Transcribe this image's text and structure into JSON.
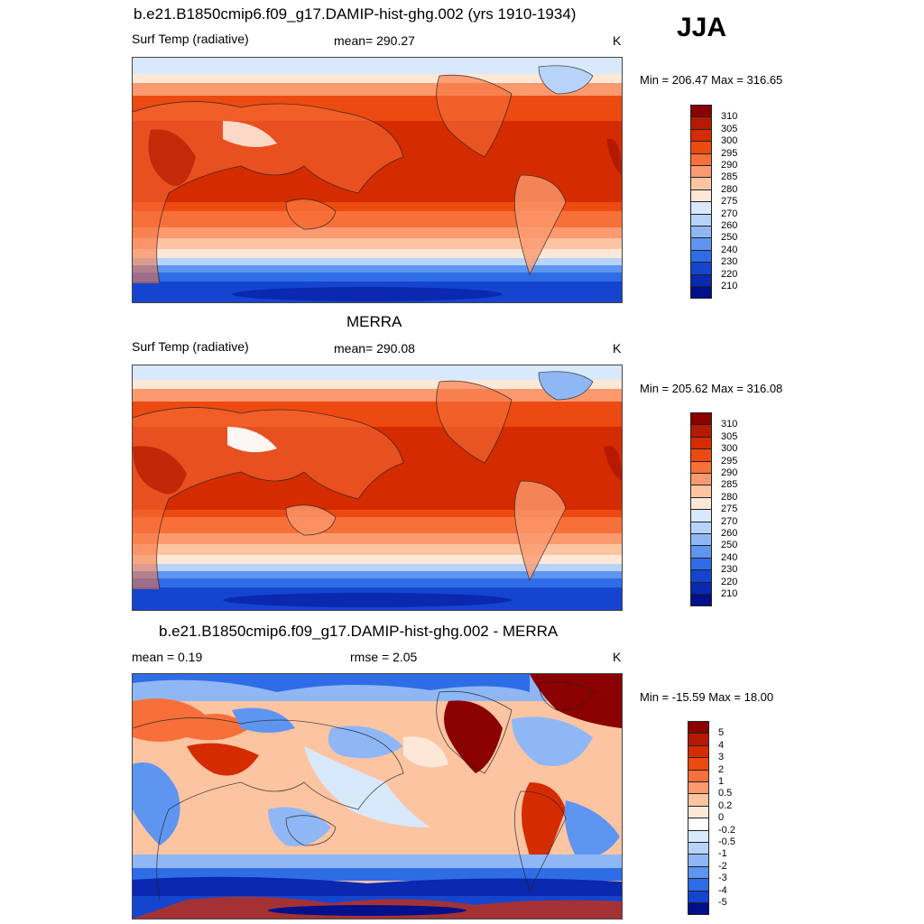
{
  "season": "JJA",
  "panels": [
    {
      "title": "b.e21.B1850cmip6.f09_g17.DAMIP-hist-ghg.002 (yrs 1910-1934)",
      "left": "Surf Temp (radiative)",
      "center": "mean= 290.27",
      "right": "K",
      "minmax": "Min = 206.47 Max = 316.65",
      "colorbar_labels": [
        "310",
        "305",
        "300",
        "295",
        "290",
        "285",
        "280",
        "275",
        "270",
        "260",
        "250",
        "240",
        "230",
        "220",
        "210"
      ],
      "colorbar_colors": [
        "#8b0000",
        "#b51a00",
        "#d42c00",
        "#ec4a10",
        "#f7703a",
        "#fb9a6e",
        "#fdc4a2",
        "#fde8d8",
        "#d8e9fb",
        "#b8d3f9",
        "#8fb7f6",
        "#5e95f0",
        "#2f6de6",
        "#1545cf",
        "#0a28b0",
        "#00108a"
      ]
    },
    {
      "title": "MERRA",
      "left": "Surf Temp (radiative)",
      "center": "mean= 290.08",
      "right": "K",
      "minmax": "Min = 205.62 Max = 316.08",
      "colorbar_labels": [
        "310",
        "305",
        "300",
        "295",
        "290",
        "285",
        "280",
        "275",
        "270",
        "260",
        "250",
        "240",
        "230",
        "220",
        "210"
      ],
      "colorbar_colors": [
        "#8b0000",
        "#b51a00",
        "#d42c00",
        "#ec4a10",
        "#f7703a",
        "#fb9a6e",
        "#fdc4a2",
        "#fde8d8",
        "#d8e9fb",
        "#b8d3f9",
        "#8fb7f6",
        "#5e95f0",
        "#2f6de6",
        "#1545cf",
        "#0a28b0",
        "#00108a"
      ]
    },
    {
      "title": "b.e21.B1850cmip6.f09_g17.DAMIP-hist-ghg.002 - MERRA",
      "left": "mean =   0.19",
      "center": "rmse =   2.05",
      "right": "K",
      "minmax": "Min = -15.59 Max =  18.00",
      "colorbar_labels": [
        "5",
        "4",
        "3",
        "2",
        "1",
        "0.5",
        "0.2",
        "0",
        "-0.2",
        "-0.5",
        "-1",
        "-2",
        "-3",
        "-4",
        "-5"
      ],
      "colorbar_colors": [
        "#8b0000",
        "#b51a00",
        "#d42c00",
        "#ec4a10",
        "#f7703a",
        "#fb9a6e",
        "#fdc4a2",
        "#fde8d8",
        "#ffffff",
        "#d8e9fb",
        "#b8d3f9",
        "#8fb7f6",
        "#5e95f0",
        "#2f6de6",
        "#1545cf",
        "#00108a"
      ]
    }
  ]
}
